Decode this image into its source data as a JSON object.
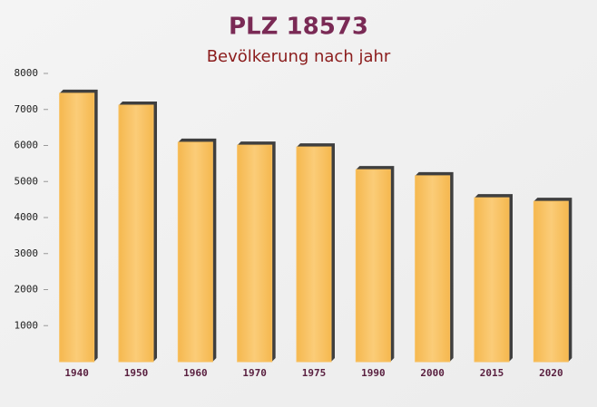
{
  "chart_data": {
    "type": "bar",
    "title": "PLZ 18573",
    "subtitle": "Bevölkerung nach jahr",
    "categories": [
      "1940",
      "1950",
      "1960",
      "1970",
      "1975",
      "1990",
      "2000",
      "2015",
      "2020"
    ],
    "values": [
      7450,
      7120,
      6090,
      6010,
      5960,
      5330,
      5160,
      4550,
      4450
    ],
    "color": "#f8c060",
    "ylim": [
      0,
      8000
    ],
    "yticks": [
      1000,
      2000,
      3000,
      4000,
      5000,
      6000,
      7000,
      8000
    ]
  }
}
